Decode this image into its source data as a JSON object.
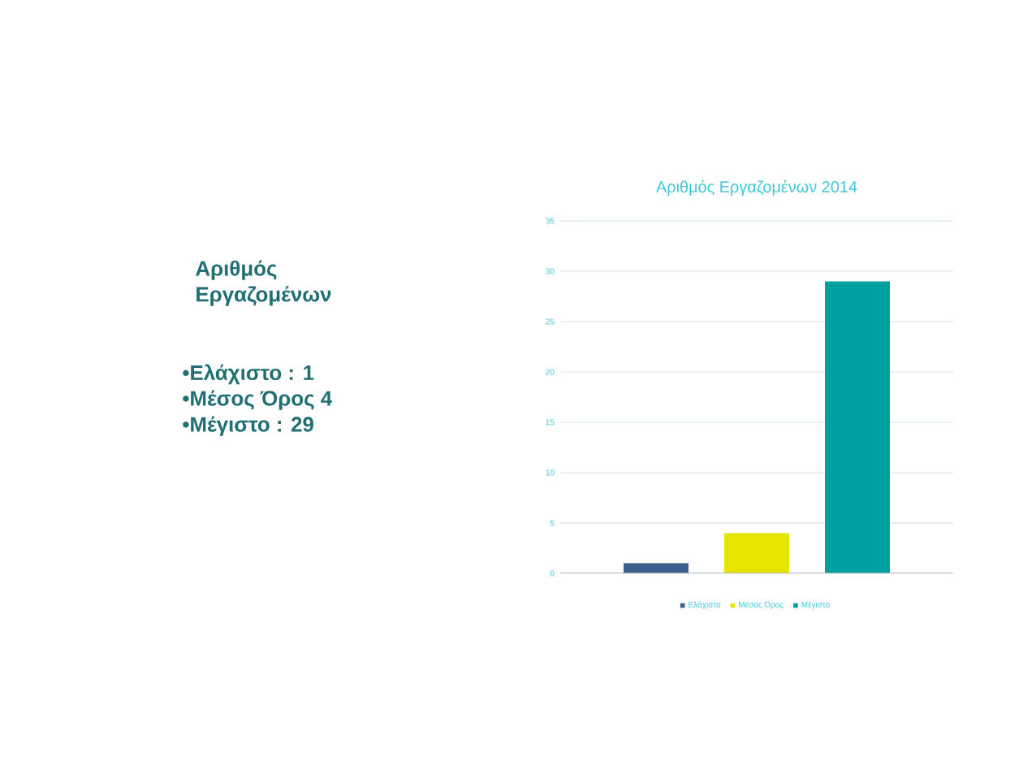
{
  "chart_data": {
    "type": "bar",
    "title": "Αριθμός Εργαζομένων 2014",
    "categories": [
      null
    ],
    "series": [
      {
        "name": "Ελάχιστο",
        "color": "#3b6090",
        "values": [
          1
        ]
      },
      {
        "name": "Μέσος Όρος",
        "color": "#e5e500",
        "values": [
          4
        ]
      },
      {
        "name": "Μέγιστο",
        "color": "#00a0a0",
        "values": [
          29
        ]
      }
    ],
    "ylim": [
      0,
      35
    ],
    "yticks": [
      0,
      5,
      10,
      15,
      20,
      25,
      30,
      35
    ],
    "grid": "y",
    "legend": "bottom",
    "annotations": [
      "Αριθμός Εργαζομένων",
      "•Ελάχιστο : 1",
      "•Μέσος Όρος 4",
      "•Μέγιστο : 29"
    ]
  }
}
